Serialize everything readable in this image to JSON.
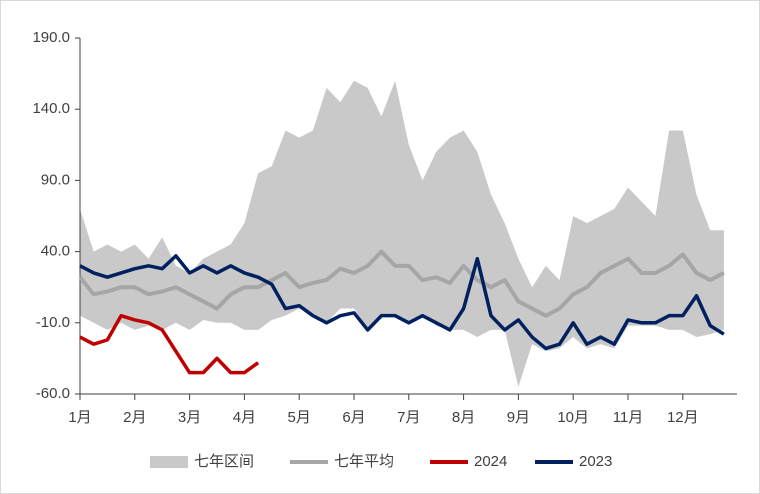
{
  "chart_data": {
    "type": "line",
    "categories": [
      "1月",
      null,
      null,
      null,
      "2月",
      null,
      null,
      null,
      "3月",
      null,
      null,
      null,
      "4月",
      null,
      null,
      null,
      "5月",
      null,
      null,
      null,
      "6月",
      null,
      null,
      null,
      "7月",
      null,
      null,
      null,
      "8月",
      null,
      null,
      null,
      "9月",
      null,
      null,
      null,
      "10月",
      null,
      null,
      null,
      "11月",
      null,
      null,
      null,
      "12月",
      null,
      null,
      null
    ],
    "ylim": [
      -60,
      190
    ],
    "yticks": [
      {
        "value": -60,
        "label": "-60.0"
      },
      {
        "value": -10,
        "label": "-10.0"
      },
      {
        "value": 40,
        "label": "40.0"
      },
      {
        "value": 90,
        "label": "90.0"
      },
      {
        "value": 140,
        "label": "140.0"
      },
      {
        "value": 190,
        "label": "190.0"
      }
    ],
    "legend": "bottom",
    "series": [
      {
        "name": "七年区间",
        "color": "#c9c9c9",
        "upper": [
          70,
          40,
          45,
          40,
          45,
          35,
          50,
          30,
          25,
          35,
          40,
          45,
          60,
          95,
          100,
          125,
          120,
          125,
          155,
          145,
          160,
          155,
          135,
          160,
          115,
          90,
          110,
          120,
          125,
          110,
          80,
          60,
          35,
          15,
          30,
          20,
          65,
          60,
          65,
          70,
          85,
          75,
          65,
          125,
          125,
          80,
          55,
          55
        ],
        "lower": [
          -5,
          -10,
          -15,
          -10,
          -15,
          -12,
          -15,
          -10,
          -15,
          -8,
          -10,
          -10,
          -15,
          -15,
          -8,
          -5,
          0,
          -5,
          -10,
          0,
          0,
          -15,
          -5,
          -5,
          -10,
          -5,
          -12,
          -15,
          -15,
          -20,
          -15,
          -15,
          -55,
          -25,
          -30,
          -28,
          -20,
          -28,
          -25,
          -28,
          -12,
          -12,
          -12,
          -15,
          -15,
          -20,
          -18,
          -15
        ]
      },
      {
        "name": "七年平均",
        "color": "#a6a6a6",
        "values": [
          22,
          10,
          12,
          15,
          15,
          10,
          12,
          15,
          10,
          5,
          0,
          10,
          15,
          15,
          20,
          25,
          15,
          18,
          20,
          28,
          25,
          30,
          40,
          30,
          30,
          20,
          22,
          18,
          30,
          20,
          15,
          20,
          5,
          0,
          -5,
          0,
          10,
          15,
          25,
          30,
          35,
          25,
          25,
          30,
          38,
          25,
          20,
          25
        ]
      },
      {
        "name": "2024",
        "color": "#c00000",
        "values": [
          -20,
          -25,
          -22,
          -5,
          -8,
          -10,
          -15,
          -30,
          -45,
          -45,
          -35,
          -45,
          -45,
          -38,
          null,
          null,
          null,
          null,
          null,
          null,
          null,
          null,
          null,
          null,
          null,
          null,
          null,
          null,
          null,
          null,
          null,
          null,
          null,
          null,
          null,
          null,
          null,
          null,
          null,
          null,
          null,
          null,
          null,
          null,
          null,
          null,
          null,
          null
        ]
      },
      {
        "name": "2023",
        "color": "#002060",
        "values": [
          30,
          25,
          22,
          25,
          28,
          30,
          28,
          37,
          25,
          30,
          25,
          30,
          25,
          22,
          17,
          0,
          2,
          -5,
          -10,
          -5,
          -3,
          -15,
          -5,
          -5,
          -10,
          -5,
          -10,
          -15,
          0,
          35,
          -5,
          -15,
          -8,
          -20,
          -28,
          -25,
          -10,
          -25,
          -20,
          -25,
          -8,
          -10,
          -10,
          -5,
          -5,
          9,
          -12,
          -18
        ]
      }
    ]
  }
}
